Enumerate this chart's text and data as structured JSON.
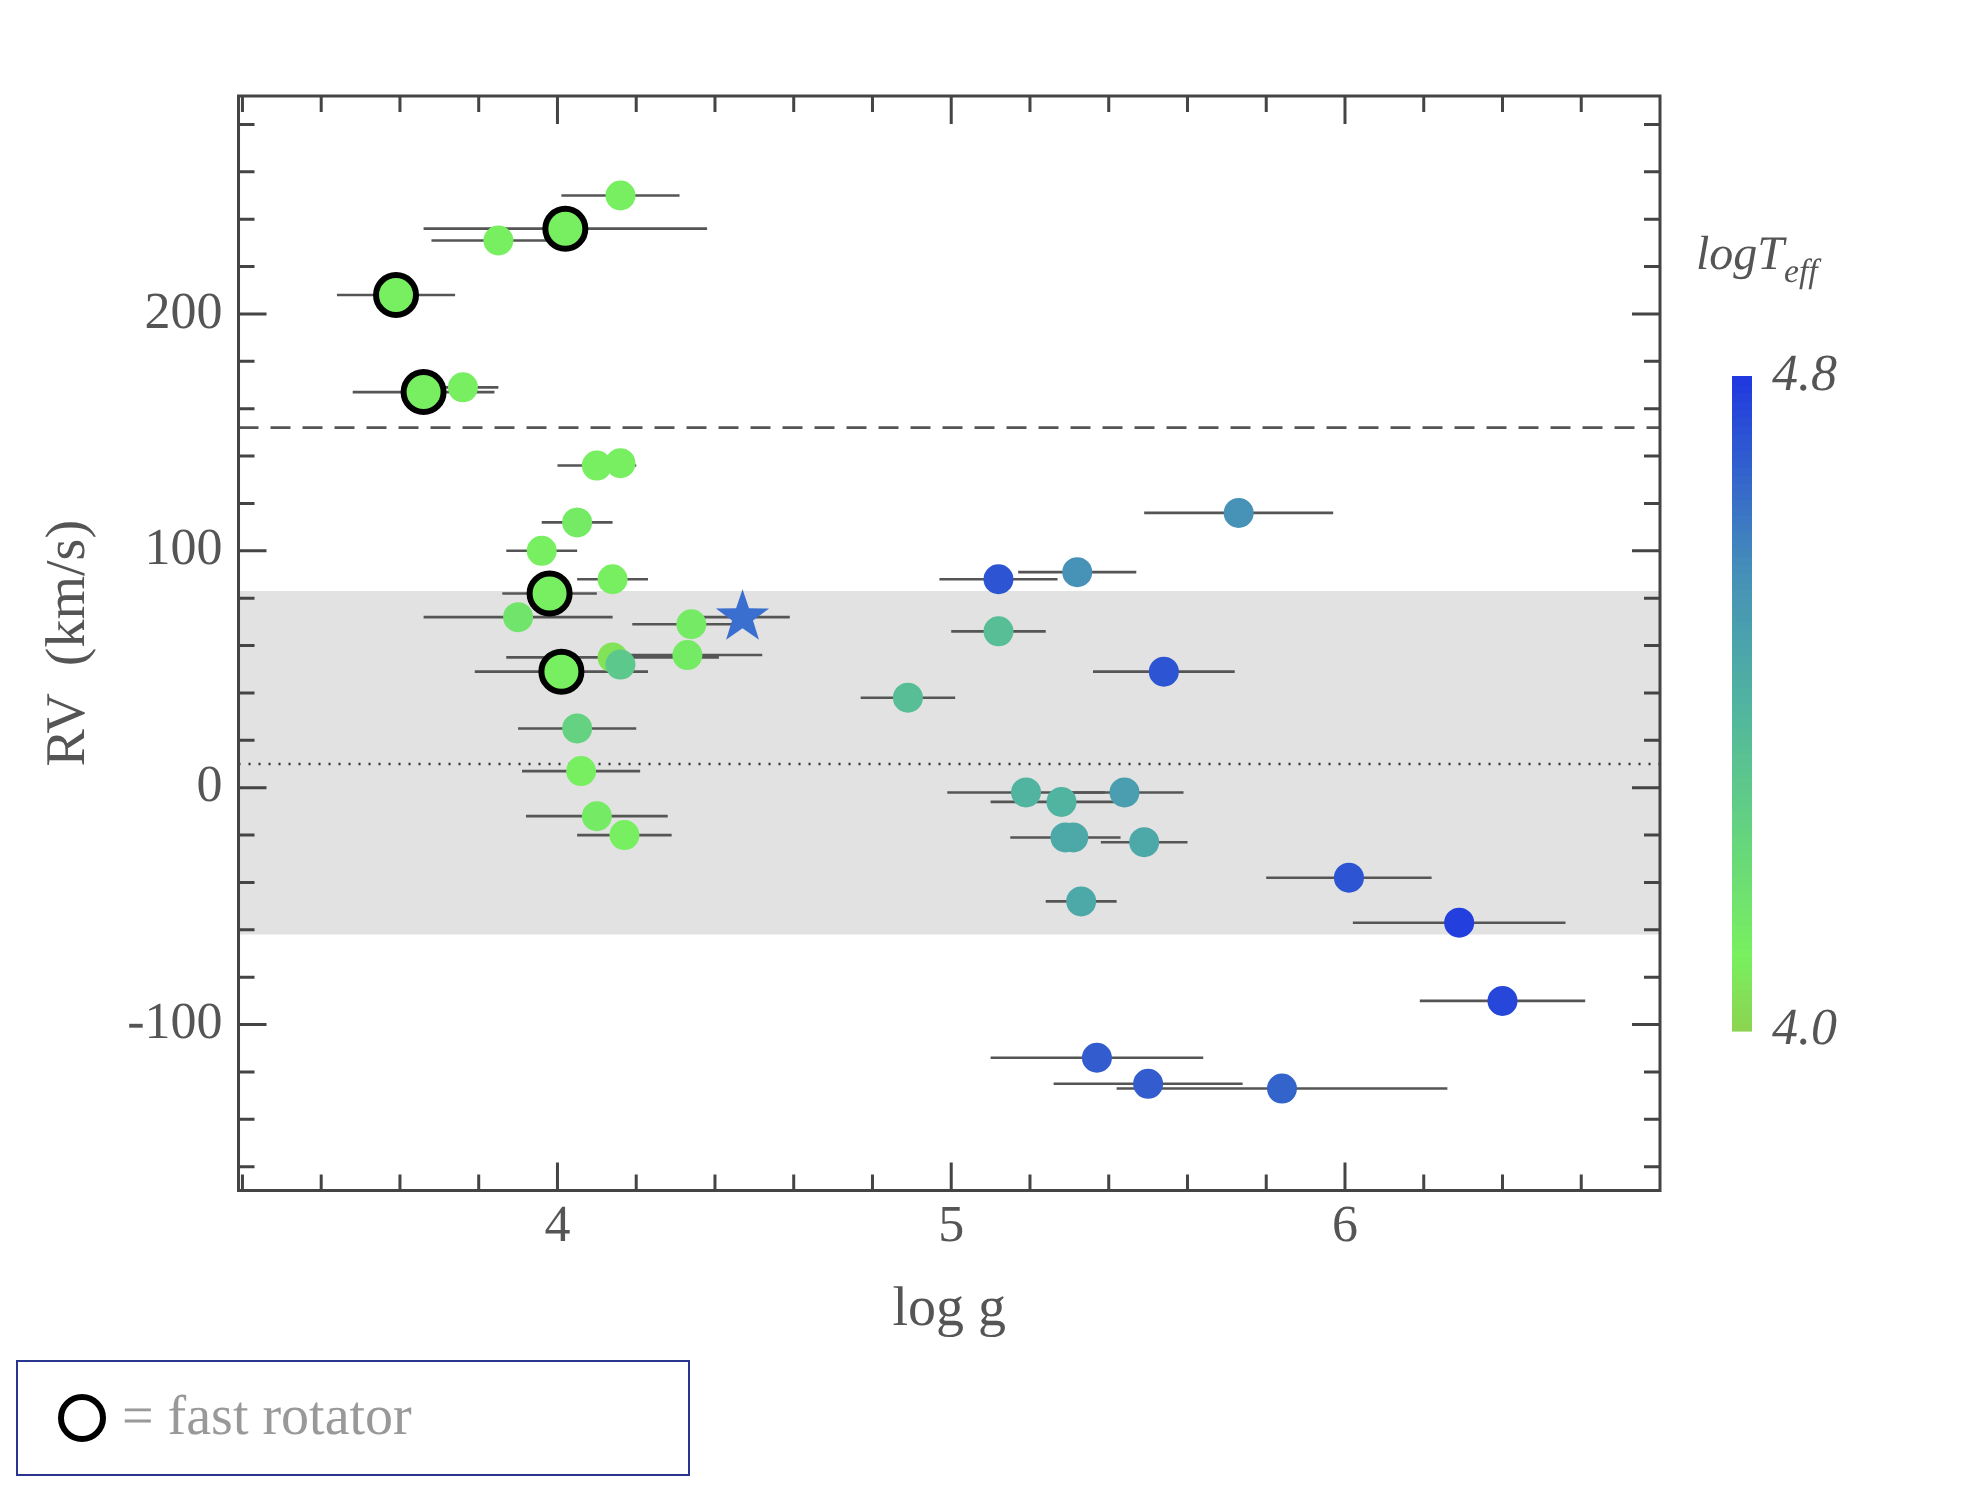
{
  "chart_data": {
    "type": "scatter",
    "xlabel": "log g",
    "ylabel": "RV  (km/s)",
    "clabel": "logT$_{eff}$",
    "clim": [
      4.0,
      4.8
    ],
    "cticks": [
      {
        "value": 4.0,
        "label": "4.0"
      },
      4.8
    ],
    "xlim": [
      3.19,
      6.8
    ],
    "xticks": [
      {
        "value": 3.2,
        "label": null
      },
      {
        "value": 3.4,
        "label": null
      },
      {
        "value": 3.6,
        "label": null
      },
      {
        "value": 3.8,
        "label": null
      },
      4,
      {
        "value": 4.2,
        "label": null
      },
      {
        "value": 4.4,
        "label": null
      },
      {
        "value": 4.6,
        "label": null
      },
      {
        "value": 4.8,
        "label": null
      },
      5,
      {
        "value": 5.2,
        "label": null
      },
      {
        "value": 5.4,
        "label": null
      },
      {
        "value": 5.6,
        "label": null
      },
      {
        "value": 5.8,
        "label": null
      },
      6,
      {
        "value": 6.2,
        "label": null
      },
      {
        "value": 6.4,
        "label": null
      },
      {
        "value": 6.6,
        "label": null
      }
    ],
    "ylim": [
      -170,
      292
    ],
    "yticks": [
      {
        "value": -160,
        "label": null
      },
      {
        "value": -140,
        "label": null
      },
      {
        "value": -120,
        "label": null
      },
      -100,
      {
        "value": -80,
        "label": null
      },
      {
        "value": -60,
        "label": null
      },
      {
        "value": -40,
        "label": null
      },
      {
        "value": -20,
        "label": null
      },
      0,
      {
        "value": 20,
        "label": null
      },
      {
        "value": 40,
        "label": null
      },
      {
        "value": 60,
        "label": null
      },
      {
        "value": 80,
        "label": null
      },
      100,
      {
        "value": 120,
        "label": null
      },
      {
        "value": 140,
        "label": null
      },
      {
        "value": 160,
        "label": null
      },
      {
        "value": 180,
        "label": null
      },
      200,
      {
        "value": 220,
        "label": null
      },
      {
        "value": 240,
        "label": null
      },
      {
        "value": 260,
        "label": null
      },
      {
        "value": 280,
        "label": null
      }
    ],
    "grid": false,
    "legend": "bottom left",
    "bands": [
      {
        "axis": "y",
        "from": -62,
        "to": 83,
        "color": "#e2e2e2"
      }
    ],
    "ref_lines": [
      {
        "axis": "y",
        "value": 152,
        "line_style": "dashed",
        "color": "#555555"
      },
      {
        "axis": "y",
        "value": 10,
        "line_style": "dotted",
        "color": "#333333"
      }
    ],
    "series": [
      {
        "marker": "circle",
        "x": [
          4.16,
          3.85,
          3.76,
          4.1,
          4.16,
          4.05,
          3.96,
          4.14,
          3.9,
          4.34,
          4.14,
          4.16,
          4.33,
          4.05,
          4.06,
          4.1,
          4.17,
          5.73,
          5.12,
          5.32,
          5.12,
          4.89,
          5.54,
          5.19,
          5.28,
          5.44,
          5.29,
          5.31,
          5.49,
          5.33,
          6.01,
          6.29,
          6.4,
          5.37,
          5.5,
          5.84
        ],
        "values": [
          250,
          231,
          169,
          136,
          137,
          112,
          100,
          88,
          72,
          69,
          55,
          52,
          56,
          25,
          7,
          -12,
          -20,
          116,
          88,
          91,
          66,
          38,
          49,
          -2,
          -6,
          -2,
          -21,
          -21,
          -23,
          -48,
          -38,
          -57,
          -90,
          -114,
          -125,
          -127
        ],
        "colors": [
          "#77ef61",
          "#77ef61",
          "#77ef61",
          "#77ef61",
          "#77ef61",
          "#75eb65",
          "#77ef61",
          "#77ef61",
          "#71e56b",
          "#75eb65",
          "#82e358",
          "#5dc88b",
          "#75eb65",
          "#64d280",
          "#77ef61",
          "#75eb65",
          "#77ef61",
          "#4792b7",
          "#2d55d3",
          "#4792b7",
          "#57be96",
          "#57be96",
          "#2d55d3",
          "#50b4a0",
          "#50b4a0",
          "#4a9eaf",
          "#4da9a8",
          "#4da9a8",
          "#4da9a8",
          "#4da9a8",
          "#2d55d3",
          "#233fdd",
          "#2647d9",
          "#335dcf",
          "#335dcf",
          "#3364cc"
        ],
        "xerrors": [
          0.15,
          0.17,
          0.09,
          0.1,
          null,
          0.09,
          0.09,
          0.09,
          0.24,
          0.15,
          0.27,
          null,
          0.19,
          0.15,
          0.15,
          0.18,
          0.12,
          0.24,
          0.15,
          0.15,
          0.12,
          0.12,
          0.18,
          0.2,
          0.18,
          0.15,
          0.14,
          null,
          0.11,
          0.09,
          0.21,
          0.27,
          0.21,
          0.27,
          0.24,
          0.42
        ]
      },
      {
        "name": "= fast rotator",
        "color": "#000000",
        "marker": "circle",
        "x": [
          3.59,
          4.02,
          3.66,
          3.98,
          4.01
        ],
        "values": [
          208,
          236,
          167,
          82,
          49
        ],
        "cvalues": [
          4.1,
          4.1,
          4.1,
          4.1,
          4.1
        ],
        "xerrors": [
          0.15,
          0.36,
          0.18,
          0.12,
          0.22
        ]
      },
      {
        "color": "#3a6fd0",
        "marker": "star",
        "x": [
          4.47
        ],
        "values": [
          72
        ],
        "xerrors": [
          0.12
        ]
      }
    ]
  }
}
